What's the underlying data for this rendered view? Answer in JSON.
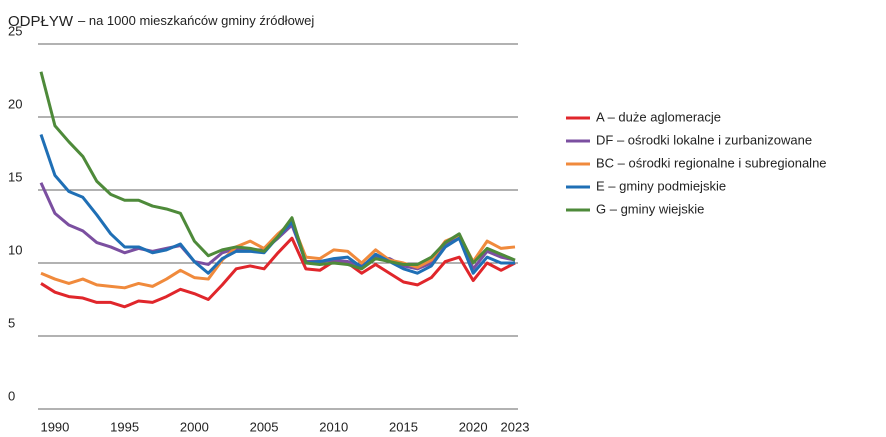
{
  "chart_data": {
    "type": "line",
    "title": "ODPŁYW",
    "subtitle": "– na 1000 mieszkańców gminy źródłowej",
    "x": [
      1989,
      1990,
      1991,
      1992,
      1993,
      1994,
      1995,
      1996,
      1997,
      1998,
      1999,
      2000,
      2001,
      2002,
      2003,
      2004,
      2005,
      2006,
      2007,
      2008,
      2009,
      2010,
      2011,
      2012,
      2013,
      2014,
      2015,
      2016,
      2017,
      2018,
      2019,
      2020,
      2021,
      2022,
      2023
    ],
    "xlim": [
      1989,
      2023
    ],
    "xticks": [
      1990,
      1995,
      2000,
      2005,
      2010,
      2015,
      2020,
      2023
    ],
    "ylim": [
      0,
      25
    ],
    "yticks": [
      0,
      5,
      10,
      15,
      20,
      25
    ],
    "grid": true,
    "legend": "right",
    "series": [
      {
        "name": "A – duże aglomeracje",
        "color": "#e0262b",
        "values": [
          8.6,
          8.0,
          7.7,
          7.6,
          7.3,
          7.3,
          7.0,
          7.4,
          7.3,
          7.7,
          8.2,
          7.9,
          7.5,
          8.5,
          9.6,
          9.8,
          9.6,
          10.7,
          11.7,
          9.6,
          9.5,
          10.1,
          10.0,
          9.3,
          9.9,
          9.3,
          8.7,
          8.5,
          9.0,
          10.1,
          10.4,
          8.8,
          10.0,
          9.5,
          10.0
        ]
      },
      {
        "name": "DF – ośrodki lokalne i zurbanizowane",
        "color": "#7b4fa0",
        "values": [
          15.5,
          13.4,
          12.6,
          12.2,
          11.4,
          11.1,
          10.7,
          11.0,
          10.8,
          11.0,
          11.2,
          10.1,
          9.9,
          10.7,
          11.0,
          10.9,
          10.9,
          11.7,
          12.6,
          10.1,
          10.1,
          10.2,
          10.1,
          9.8,
          10.4,
          10.3,
          9.8,
          9.6,
          10.0,
          11.3,
          11.8,
          9.6,
          10.8,
          10.4,
          10.2
        ]
      },
      {
        "name": "BC – ośrodki regionalne i subregionalne",
        "color": "#f08a3c",
        "values": [
          9.3,
          8.9,
          8.6,
          8.9,
          8.5,
          8.4,
          8.3,
          8.6,
          8.4,
          8.9,
          9.5,
          9.0,
          8.9,
          10.2,
          11.1,
          11.5,
          11.0,
          12.0,
          12.8,
          10.4,
          10.3,
          10.9,
          10.8,
          10.0,
          10.9,
          10.2,
          10.0,
          9.7,
          10.2,
          11.5,
          11.9,
          10.1,
          11.5,
          11.0,
          11.1
        ]
      },
      {
        "name": "E – gminy podmiejskie",
        "color": "#1f6fb5",
        "values": [
          18.8,
          16.0,
          14.9,
          14.5,
          13.3,
          12.0,
          11.1,
          11.1,
          10.7,
          10.9,
          11.3,
          10.1,
          9.3,
          10.3,
          10.8,
          10.8,
          10.7,
          11.8,
          12.8,
          10.0,
          10.1,
          10.3,
          10.4,
          9.7,
          10.6,
          10.1,
          9.6,
          9.3,
          9.8,
          11.1,
          11.7,
          9.3,
          10.4,
          10.0,
          10.0
        ]
      },
      {
        "name": "G – gminy wiejskie",
        "color": "#4e8a3a",
        "values": [
          23.1,
          19.4,
          18.3,
          17.3,
          15.6,
          14.7,
          14.3,
          14.3,
          13.9,
          13.7,
          13.4,
          11.5,
          10.5,
          10.9,
          11.1,
          11.0,
          10.8,
          11.8,
          13.1,
          10.0,
          9.9,
          10.0,
          9.9,
          9.6,
          10.3,
          10.1,
          9.9,
          9.9,
          10.4,
          11.4,
          12.0,
          10.0,
          11.0,
          10.6,
          10.2
        ]
      }
    ]
  }
}
